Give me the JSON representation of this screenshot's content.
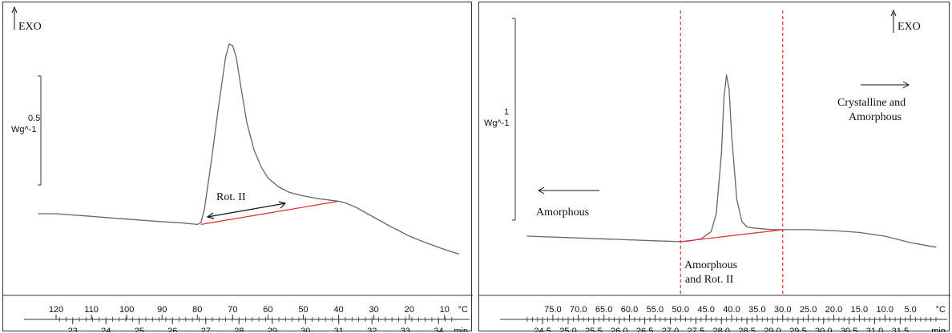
{
  "colors": {
    "curve": "#666666",
    "baseline": "#e83030",
    "guide": "#e83030",
    "axis": "#333333",
    "arrow": "#111111"
  },
  "chart_data": [
    {
      "type": "line",
      "title": "",
      "exo_label": "EXO",
      "scale_bar": {
        "value": "0.5",
        "unit": "Wg^-1"
      },
      "annotation": "Rot. II",
      "axis_temp": {
        "unit": "°C",
        "ticks": [
          "120",
          "110",
          "100",
          "90",
          "80",
          "70",
          "60",
          "50",
          "40",
          "30",
          "20",
          "10"
        ],
        "range": [
          120,
          7
        ]
      },
      "axis_time": {
        "unit": "min",
        "ticks": [
          "23",
          "24",
          "25",
          "26",
          "27",
          "28",
          "29",
          "30",
          "31",
          "32",
          "33",
          "34"
        ],
        "range": [
          22.5,
          34.5
        ]
      },
      "series": [
        {
          "x": [
            125,
            120,
            110,
            100,
            90,
            85,
            80,
            79,
            78,
            76,
            74,
            72,
            71,
            70,
            69,
            68,
            66,
            64,
            62,
            60,
            57,
            54,
            50,
            46,
            42,
            40,
            38,
            35,
            30,
            25,
            20,
            15,
            10,
            6
          ],
          "y": [
            0.0,
            0.0,
            -0.03,
            -0.06,
            -0.09,
            -0.1,
            -0.12,
            -0.1,
            0.05,
            0.6,
            1.2,
            1.75,
            1.9,
            1.88,
            1.75,
            1.5,
            1.02,
            0.72,
            0.53,
            0.4,
            0.3,
            0.24,
            0.2,
            0.17,
            0.15,
            0.14,
            0.12,
            0.07,
            -0.04,
            -0.15,
            -0.25,
            -0.33,
            -0.4,
            -0.45
          ]
        }
      ],
      "baseline": {
        "x": [
          79,
          40
        ],
        "y": [
          -0.12,
          0.14
        ]
      }
    },
    {
      "type": "line",
      "title": "",
      "exo_label": "EXO",
      "scale_bar": {
        "value": "1",
        "unit": "Wg^-1"
      },
      "annotations": {
        "left": "Amorphous",
        "middle": [
          "Amorphous",
          "and Rot. II"
        ],
        "right": [
          "Crystalline and",
          "Amorphous"
        ]
      },
      "axis_temp": {
        "unit": "°C",
        "ticks": [
          "75.0",
          "70.0",
          "65.0",
          "60.0",
          "55.0",
          "50.0",
          "45.0",
          "40.0",
          "35.0",
          "30.0",
          "25.0",
          "20.0",
          "15.0",
          "10.0",
          "5.0"
        ],
        "range": [
          80,
          0
        ]
      },
      "axis_time": {
        "unit": "min",
        "ticks": [
          "24.5",
          "25.0",
          "25.5",
          "26.0",
          "26.5",
          "27.0",
          "27.5",
          "28.0",
          "28.5",
          "29.0",
          "29.5",
          "30.0",
          "30.5",
          "31.0",
          "31.5"
        ],
        "range": [
          24.2,
          32.2
        ]
      },
      "guide_lines": [
        50.0,
        30.0
      ],
      "series": [
        {
          "x": [
            80,
            70,
            60,
            55,
            50,
            48,
            46,
            44,
            43,
            42,
            41.5,
            41,
            40.5,
            40,
            39,
            38,
            37,
            36,
            34,
            32,
            30,
            25,
            20,
            15,
            10,
            5,
            0
          ],
          "y": [
            0.0,
            -0.02,
            -0.04,
            -0.05,
            -0.06,
            -0.05,
            -0.03,
            0.05,
            0.25,
            0.9,
            1.5,
            1.75,
            1.6,
            1.1,
            0.4,
            0.16,
            0.1,
            0.09,
            0.08,
            0.07,
            0.07,
            0.07,
            0.06,
            0.04,
            0.0,
            -0.07,
            -0.12
          ]
        }
      ],
      "baseline": {
        "x": [
          50,
          30
        ],
        "y": [
          -0.06,
          0.07
        ]
      }
    }
  ]
}
